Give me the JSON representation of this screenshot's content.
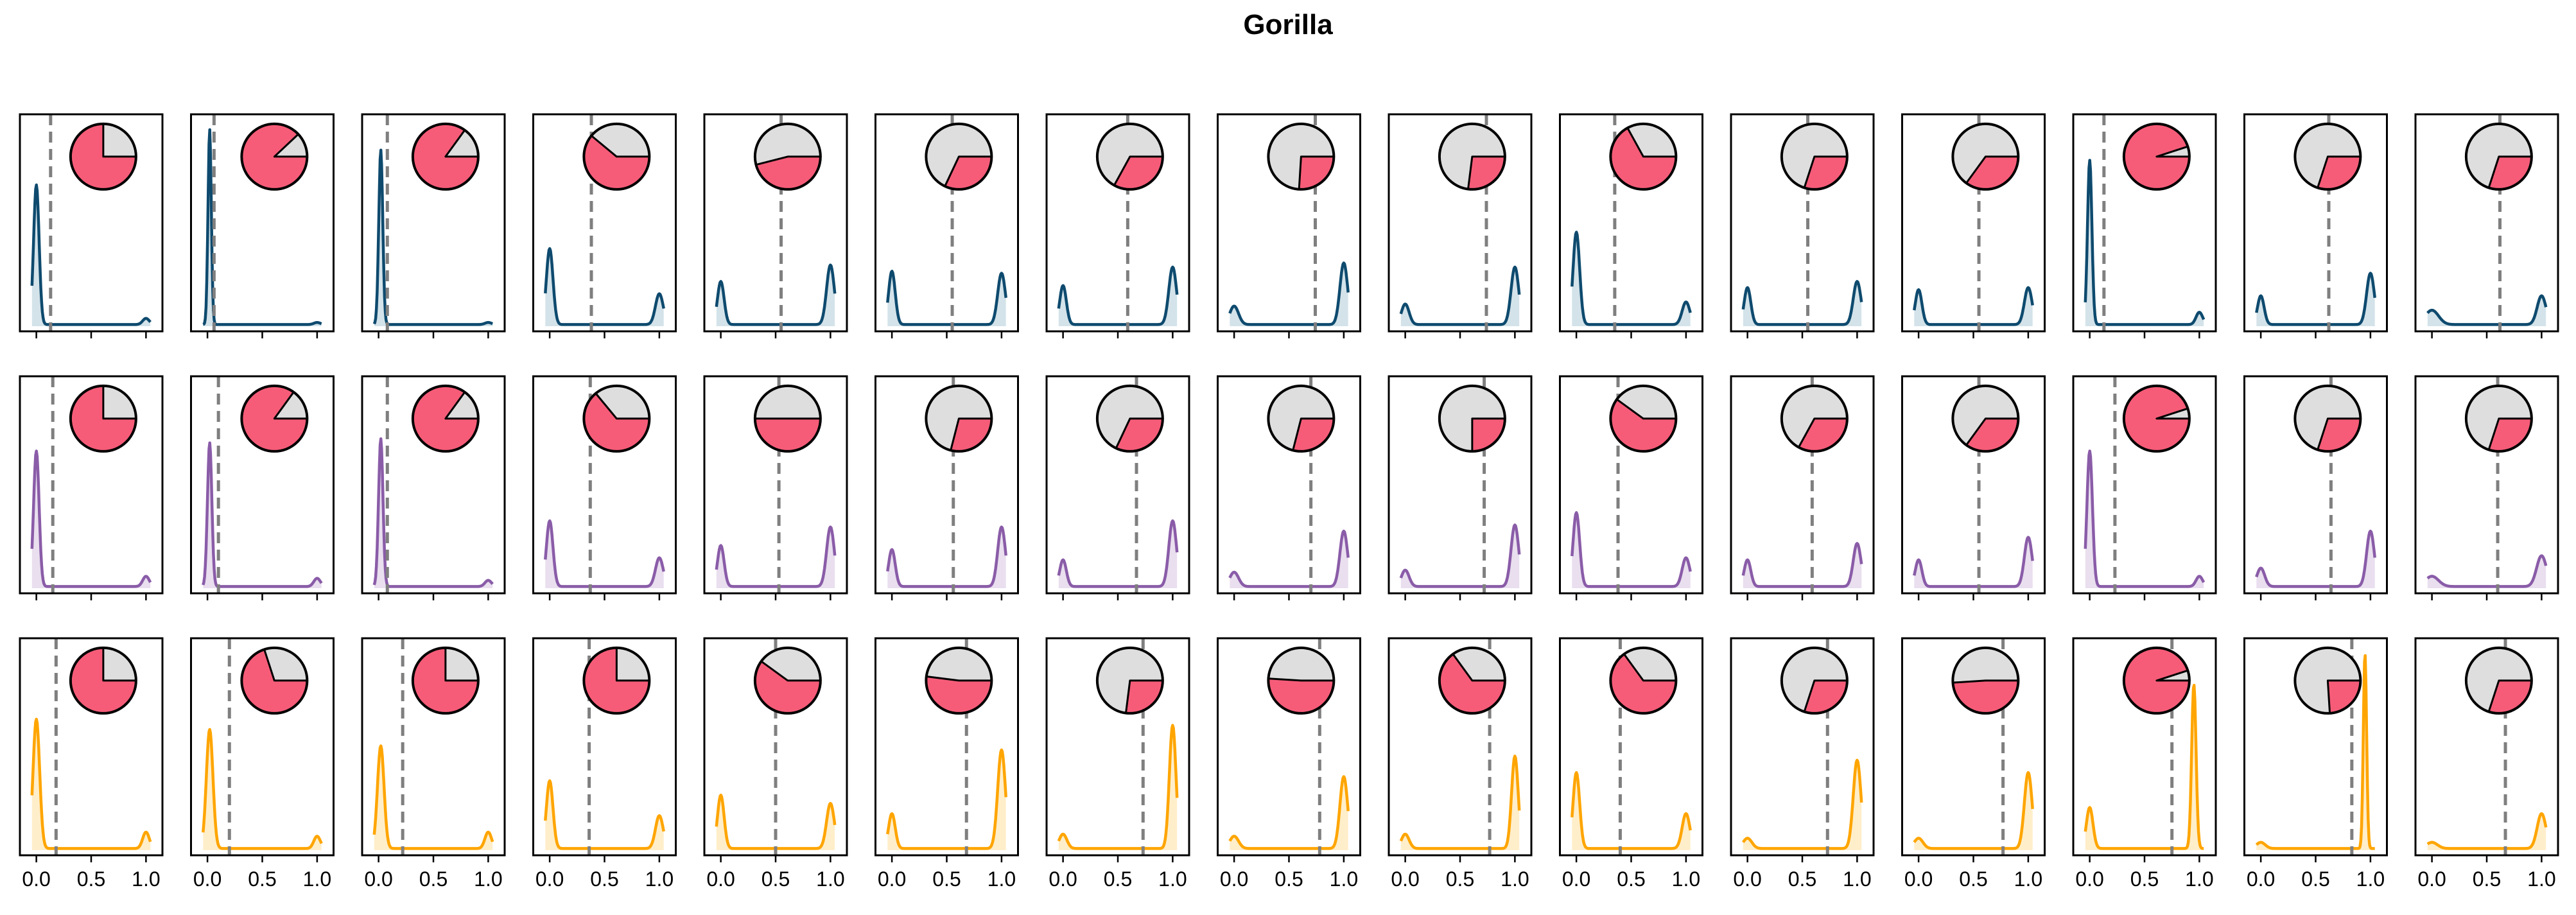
{
  "chart_data": {
    "type": "density-grid",
    "title": "Gorilla",
    "rows": 3,
    "cols": 15,
    "xlim": [
      -0.15,
      1.15
    ],
    "xticks": [
      0.0,
      0.5,
      1.0
    ],
    "xtick_labels": [
      "0.0",
      "0.5",
      "1.0"
    ],
    "row_colors": [
      {
        "line": "#0e4a6e",
        "fill": "#c5d9e3"
      },
      {
        "line": "#8a5ca8",
        "fill": "#e1d4ea"
      },
      {
        "line": "#ffa500",
        "fill": "#ffe8b8"
      }
    ],
    "pie_colors": {
      "main": "#f65c78",
      "rest": "#dedede"
    },
    "vline_style": {
      "color": "#7f7f7f",
      "dashed": true
    },
    "panels": [
      [
        {
          "vline": 0.13,
          "pie": 0.75,
          "peaks": [
            [
              0.0,
              0.68,
              0.025
            ],
            [
              1.0,
              0.03,
              0.03
            ]
          ]
        },
        {
          "vline": 0.06,
          "pie": 0.88,
          "peaks": [
            [
              0.02,
              0.95,
              0.015
            ],
            [
              1.0,
              0.01,
              0.03
            ]
          ]
        },
        {
          "vline": 0.08,
          "pie": 0.85,
          "peaks": [
            [
              0.02,
              0.85,
              0.018
            ],
            [
              1.0,
              0.01,
              0.03
            ]
          ]
        },
        {
          "vline": 0.38,
          "pie": 0.61,
          "peaks": [
            [
              0.0,
              0.37,
              0.03
            ],
            [
              1.0,
              0.15,
              0.035
            ]
          ]
        },
        {
          "vline": 0.55,
          "pie": 0.46,
          "peaks": [
            [
              0.0,
              0.21,
              0.03
            ],
            [
              1.0,
              0.29,
              0.035
            ]
          ]
        },
        {
          "vline": 0.55,
          "pie": 0.32,
          "peaks": [
            [
              0.0,
              0.26,
              0.03
            ],
            [
              1.0,
              0.25,
              0.035
            ]
          ]
        },
        {
          "vline": 0.59,
          "pie": 0.33,
          "peaks": [
            [
              0.0,
              0.19,
              0.03
            ],
            [
              1.0,
              0.28,
              0.035
            ]
          ]
        },
        {
          "vline": 0.74,
          "pie": 0.26,
          "peaks": [
            [
              0.0,
              0.09,
              0.04
            ],
            [
              1.0,
              0.3,
              0.035
            ]
          ]
        },
        {
          "vline": 0.74,
          "pie": 0.27,
          "peaks": [
            [
              0.0,
              0.1,
              0.035
            ],
            [
              1.0,
              0.28,
              0.035
            ]
          ]
        },
        {
          "vline": 0.35,
          "pie": 0.67,
          "peaks": [
            [
              0.0,
              0.45,
              0.03
            ],
            [
              1.0,
              0.11,
              0.035
            ]
          ]
        },
        {
          "vline": 0.55,
          "pie": 0.3,
          "peaks": [
            [
              0.0,
              0.18,
              0.03
            ],
            [
              1.0,
              0.21,
              0.035
            ]
          ]
        },
        {
          "vline": 0.55,
          "pie": 0.35,
          "peaks": [
            [
              0.0,
              0.17,
              0.03
            ],
            [
              1.0,
              0.18,
              0.035
            ]
          ]
        },
        {
          "vline": 0.13,
          "pie": 0.95,
          "peaks": [
            [
              0.0,
              0.8,
              0.02
            ],
            [
              1.0,
              0.06,
              0.03
            ]
          ]
        },
        {
          "vline": 0.62,
          "pie": 0.3,
          "peaks": [
            [
              0.0,
              0.14,
              0.03
            ],
            [
              1.0,
              0.25,
              0.035
            ]
          ]
        },
        {
          "vline": 0.62,
          "pie": 0.3,
          "peaks": [
            [
              0.0,
              0.07,
              0.06
            ],
            [
              1.0,
              0.14,
              0.04
            ]
          ]
        }
      ],
      [
        {
          "vline": 0.15,
          "pie": 0.75,
          "peaks": [
            [
              0.0,
              0.66,
              0.025
            ],
            [
              1.0,
              0.05,
              0.03
            ]
          ]
        },
        {
          "vline": 0.1,
          "pie": 0.85,
          "peaks": [
            [
              0.02,
              0.7,
              0.02
            ],
            [
              1.0,
              0.04,
              0.03
            ]
          ]
        },
        {
          "vline": 0.08,
          "pie": 0.85,
          "peaks": [
            [
              0.02,
              0.72,
              0.02
            ],
            [
              1.0,
              0.03,
              0.03
            ]
          ]
        },
        {
          "vline": 0.37,
          "pie": 0.64,
          "peaks": [
            [
              0.0,
              0.32,
              0.03
            ],
            [
              1.0,
              0.14,
              0.035
            ]
          ]
        },
        {
          "vline": 0.53,
          "pie": 0.5,
          "peaks": [
            [
              0.0,
              0.2,
              0.03
            ],
            [
              1.0,
              0.29,
              0.035
            ]
          ]
        },
        {
          "vline": 0.56,
          "pie": 0.29,
          "peaks": [
            [
              0.0,
              0.18,
              0.03
            ],
            [
              1.0,
              0.29,
              0.035
            ]
          ]
        },
        {
          "vline": 0.67,
          "pie": 0.32,
          "peaks": [
            [
              0.0,
              0.13,
              0.03
            ],
            [
              1.0,
              0.32,
              0.035
            ]
          ]
        },
        {
          "vline": 0.7,
          "pie": 0.29,
          "peaks": [
            [
              0.0,
              0.07,
              0.04
            ],
            [
              1.0,
              0.27,
              0.035
            ]
          ]
        },
        {
          "vline": 0.72,
          "pie": 0.25,
          "peaks": [
            [
              0.0,
              0.08,
              0.035
            ],
            [
              1.0,
              0.3,
              0.035
            ]
          ]
        },
        {
          "vline": 0.38,
          "pie": 0.6,
          "peaks": [
            [
              0.0,
              0.36,
              0.03
            ],
            [
              1.0,
              0.14,
              0.035
            ]
          ]
        },
        {
          "vline": 0.59,
          "pie": 0.33,
          "peaks": [
            [
              0.0,
              0.13,
              0.03
            ],
            [
              1.0,
              0.21,
              0.035
            ]
          ]
        },
        {
          "vline": 0.55,
          "pie": 0.35,
          "peaks": [
            [
              0.0,
              0.13,
              0.03
            ],
            [
              1.0,
              0.24,
              0.035
            ]
          ]
        },
        {
          "vline": 0.23,
          "pie": 0.95,
          "peaks": [
            [
              0.0,
              0.66,
              0.025
            ],
            [
              1.0,
              0.05,
              0.03
            ]
          ]
        },
        {
          "vline": 0.64,
          "pie": 0.3,
          "peaks": [
            [
              0.0,
              0.09,
              0.035
            ],
            [
              1.0,
              0.27,
              0.035
            ]
          ]
        },
        {
          "vline": 0.6,
          "pie": 0.3,
          "peaks": [
            [
              0.0,
              0.05,
              0.06
            ],
            [
              1.0,
              0.15,
              0.045
            ]
          ]
        }
      ],
      [
        {
          "vline": 0.18,
          "pie": 0.75,
          "peaks": [
            [
              0.0,
              0.63,
              0.03
            ],
            [
              1.0,
              0.08,
              0.03
            ]
          ]
        },
        {
          "vline": 0.2,
          "pie": 0.7,
          "peaks": [
            [
              0.02,
              0.58,
              0.03
            ],
            [
              1.0,
              0.06,
              0.03
            ]
          ]
        },
        {
          "vline": 0.22,
          "pie": 0.75,
          "peaks": [
            [
              0.02,
              0.5,
              0.03
            ],
            [
              1.0,
              0.08,
              0.03
            ]
          ]
        },
        {
          "vline": 0.36,
          "pie": 0.75,
          "peaks": [
            [
              0.0,
              0.33,
              0.03
            ],
            [
              1.0,
              0.16,
              0.035
            ]
          ]
        },
        {
          "vline": 0.5,
          "pie": 0.6,
          "peaks": [
            [
              0.0,
              0.26,
              0.03
            ],
            [
              1.0,
              0.22,
              0.035
            ]
          ]
        },
        {
          "vline": 0.68,
          "pie": 0.52,
          "peaks": [
            [
              0.0,
              0.17,
              0.03
            ],
            [
              1.0,
              0.48,
              0.035
            ]
          ]
        },
        {
          "vline": 0.73,
          "pie": 0.27,
          "peaks": [
            [
              0.0,
              0.07,
              0.035
            ],
            [
              1.0,
              0.6,
              0.03
            ]
          ]
        },
        {
          "vline": 0.78,
          "pie": 0.51,
          "peaks": [
            [
              0.0,
              0.06,
              0.04
            ],
            [
              1.0,
              0.35,
              0.035
            ]
          ]
        },
        {
          "vline": 0.77,
          "pie": 0.65,
          "peaks": [
            [
              0.0,
              0.07,
              0.035
            ],
            [
              1.0,
              0.45,
              0.03
            ]
          ]
        },
        {
          "vline": 0.4,
          "pie": 0.65,
          "peaks": [
            [
              0.0,
              0.37,
              0.03
            ],
            [
              1.0,
              0.17,
              0.035
            ]
          ]
        },
        {
          "vline": 0.73,
          "pie": 0.3,
          "peaks": [
            [
              0.0,
              0.05,
              0.04
            ],
            [
              1.0,
              0.43,
              0.035
            ]
          ]
        },
        {
          "vline": 0.77,
          "pie": 0.49,
          "peaks": [
            [
              0.0,
              0.05,
              0.04
            ],
            [
              1.0,
              0.37,
              0.035
            ]
          ]
        },
        {
          "vline": 0.75,
          "pie": 0.95,
          "peaks": [
            [
              0.0,
              0.2,
              0.03
            ],
            [
              0.95,
              0.8,
              0.02
            ]
          ]
        },
        {
          "vline": 0.83,
          "pie": 0.24,
          "peaks": [
            [
              0.0,
              0.03,
              0.04
            ],
            [
              0.95,
              0.95,
              0.015
            ]
          ]
        },
        {
          "vline": 0.67,
          "pie": 0.3,
          "peaks": [
            [
              0.0,
              0.03,
              0.05
            ],
            [
              1.0,
              0.17,
              0.04
            ]
          ]
        }
      ]
    ]
  }
}
